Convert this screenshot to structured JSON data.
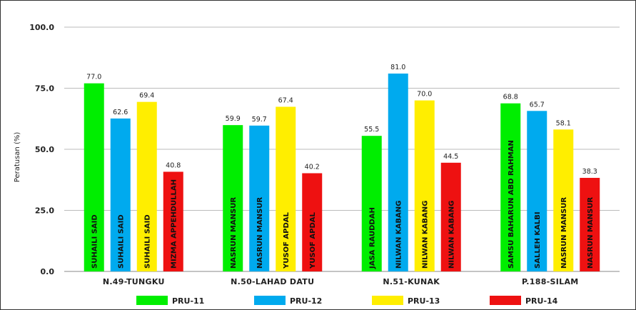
{
  "chart_data": {
    "type": "bar",
    "ylabel": "Peratusan (%)",
    "ylim": [
      0,
      100
    ],
    "yticks": [
      "0.0",
      "25.0",
      "50.0",
      "75.0",
      "100.0"
    ],
    "grid": true,
    "legend_position": "bottom",
    "categories": [
      "N.49-TUNGKU",
      "N.50-LAHAD DATU",
      "N.51-KUNAK",
      "P.188-SILAM"
    ],
    "series": [
      {
        "name": "PRU-11",
        "color": "#00ee00",
        "values": [
          77.0,
          59.9,
          55.5,
          68.8
        ],
        "value_labels": [
          "77.0",
          "59.9",
          "55.5",
          "68.8"
        ],
        "bar_labels": [
          "SUHAILI SAID",
          "NASRUN MANSUR",
          "JASA RAUDDAH",
          "SAMSU BAHARUN ABD RAHMAN"
        ]
      },
      {
        "name": "PRU-12",
        "color": "#00aaee",
        "values": [
          62.6,
          59.7,
          81.0,
          65.7
        ],
        "value_labels": [
          "62.6",
          "59.7",
          "81.0",
          "65.7"
        ],
        "bar_labels": [
          "SUHAILI SAID",
          "NASRUN MANSUR",
          "NILWAN KABANG",
          "SALLEH KALBI"
        ]
      },
      {
        "name": "PRU-13",
        "color": "#ffee00",
        "values": [
          69.4,
          67.4,
          70.0,
          58.1
        ],
        "value_labels": [
          "69.4",
          "67.4",
          "70.0",
          "58.1"
        ],
        "bar_labels": [
          "SUHAILI SAID",
          "YUSOF APDAL",
          "NILWAN KABANG",
          "NASRUN MANSUR"
        ]
      },
      {
        "name": "PRU-14",
        "color": "#ee1111",
        "values": [
          40.8,
          40.2,
          44.5,
          38.3
        ],
        "value_labels": [
          "40.8",
          "40.2",
          "44.5",
          "38.3"
        ],
        "bar_labels": [
          "MIZMA APPEHDULLAH",
          "YUSOF APDAL",
          "NILWAN KABANG",
          "NASRUN MANSUR"
        ]
      }
    ]
  }
}
